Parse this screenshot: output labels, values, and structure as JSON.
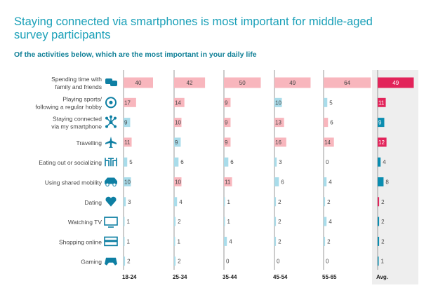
{
  "chart_data": {
    "type": "bar",
    "title": "Staying connected via smartphones is most important for middle-aged survey participants",
    "subtitle": "Of the activities below, which are the most important in your daily life",
    "categories": [
      "Spending time with family and friends",
      "Playing sports/ following a regular hobby",
      "Staying connected via my smartphone",
      "Travelling",
      "Eating out or socializing",
      "Using shared mobility",
      "Dating",
      "Watching TV",
      "Shopping online",
      "Gaming"
    ],
    "category_lines": [
      [
        "Spending time with",
        "family and friends"
      ],
      [
        "Playing sports/",
        "following a regular hobby"
      ],
      [
        "Staying connected",
        "via my smartphone"
      ],
      [
        "Travelling"
      ],
      [
        "Eating out or socializing"
      ],
      [
        "Using shared mobility"
      ],
      [
        "Dating"
      ],
      [
        "Watching TV"
      ],
      [
        "Shopping online"
      ],
      [
        "Gaming"
      ]
    ],
    "icons": [
      "chat-bubbles-icon",
      "soccer-ball-icon",
      "network-icon",
      "airplane-icon",
      "table-icon",
      "car-icon",
      "heart-icon",
      "tv-icon",
      "credit-card-icon",
      "gamepad-icon"
    ],
    "series": [
      {
        "name": "18-24",
        "values": [
          40,
          17,
          9,
          11,
          5,
          10,
          3,
          1,
          1,
          2
        ],
        "highlight": [
          "above",
          "above",
          "below",
          "above",
          "below",
          "below",
          "below",
          "below",
          "below",
          "below"
        ]
      },
      {
        "name": "25-34",
        "values": [
          42,
          14,
          10,
          9,
          6,
          10,
          4,
          2,
          1,
          2
        ],
        "highlight": [
          "above",
          "above",
          "above",
          "below",
          "below",
          "above",
          "below",
          "below",
          "below",
          "below"
        ]
      },
      {
        "name": "35-44",
        "values": [
          50,
          9,
          9,
          9,
          6,
          11,
          1,
          1,
          4,
          0
        ],
        "highlight": [
          "above",
          "above",
          "above",
          "above",
          "below",
          "above",
          "below",
          "below",
          "below",
          "below"
        ]
      },
      {
        "name": "45-54",
        "values": [
          49,
          10,
          13,
          16,
          3,
          6,
          2,
          2,
          2,
          0
        ],
        "highlight": [
          "above",
          "below",
          "above",
          "above",
          "below",
          "below",
          "below",
          "below",
          "below",
          "below"
        ]
      },
      {
        "name": "55-65",
        "values": [
          64,
          5,
          6,
          14,
          0,
          4,
          2,
          4,
          2,
          0
        ],
        "highlight": [
          "above",
          "below",
          "above",
          "above",
          "below",
          "below",
          "below",
          "below",
          "below",
          "below"
        ]
      },
      {
        "name": "Avg.",
        "values": [
          49,
          11,
          9,
          12,
          4,
          8,
          2,
          2,
          2,
          1
        ],
        "highlight": [
          "above",
          "above",
          "below",
          "above",
          "below",
          "below",
          "above",
          "below",
          "below",
          "below"
        ]
      }
    ],
    "colors": {
      "above": "#f8b6bd",
      "below": "#a9dcea",
      "avg_above": "#e2245a",
      "avg_below": "#0b8db0",
      "icon": "#0e7fa3",
      "axis": "#9a9a9a",
      "avg_panel": "#eeeeee"
    }
  }
}
